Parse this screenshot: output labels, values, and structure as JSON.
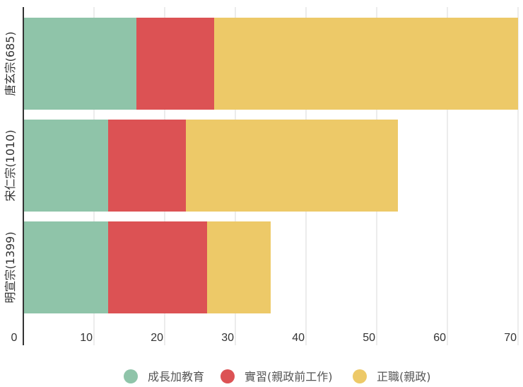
{
  "chart_data": {
    "type": "bar",
    "orientation": "horizontal",
    "stacked": true,
    "categories": [
      "唐玄宗(685)",
      "宋仁宗(1010)",
      "明宣宗(1399)"
    ],
    "series": [
      {
        "name": "成長加教育",
        "color": "#8fc4a9",
        "values": [
          16,
          12,
          12
        ]
      },
      {
        "name": "實習(親政前工作)",
        "color": "#dc5254",
        "values": [
          11,
          11,
          14
        ]
      },
      {
        "name": "正職(親政)",
        "color": "#edc968",
        "values": [
          43,
          30,
          9
        ]
      }
    ],
    "xlim": [
      0,
      70
    ],
    "xticks": [
      0,
      10,
      20,
      30,
      40,
      50,
      60,
      70
    ],
    "grid": true,
    "legend_position": "bottom",
    "title": "",
    "xlabel": "",
    "ylabel": ""
  }
}
